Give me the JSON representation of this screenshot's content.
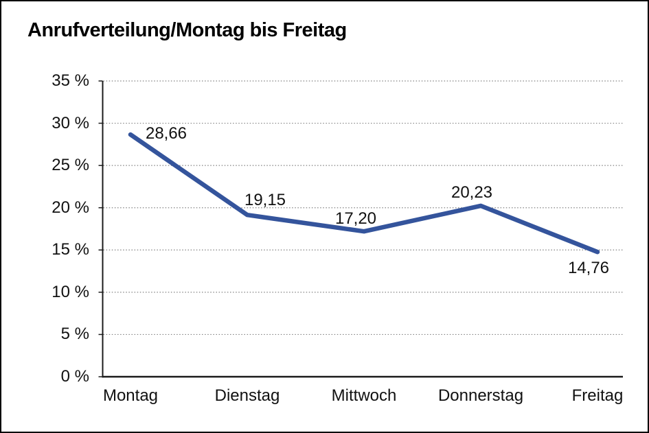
{
  "window": {
    "background_color": "#ffffff",
    "border_color": "#000000"
  },
  "chart_data": {
    "type": "line",
    "title": "Anrufverteilung/Montag bis Freitag",
    "categories": [
      "Montag",
      "Dienstag",
      "Mittwoch",
      "Donnerstag",
      "Freitag"
    ],
    "values": [
      28.66,
      19.15,
      17.2,
      20.23,
      14.76
    ],
    "value_labels": [
      "28,66",
      "19,15",
      "17,20",
      "20,23",
      "14,76"
    ],
    "yticks": [
      35,
      30,
      25,
      20,
      15,
      10,
      5,
      0
    ],
    "ytick_labels": [
      "35 %",
      "30 %",
      "25 %",
      "20 %",
      "15 %",
      "10 %",
      "5 %",
      "0 %"
    ],
    "ylim": [
      0,
      35
    ],
    "xlabel": "",
    "ylabel": "",
    "grid": "horizontal-dotted",
    "legend": "none",
    "line_color": "#34549C",
    "axis_color": "#1a1a1a",
    "gridline_color": "#808080",
    "label_color": "#111111"
  }
}
